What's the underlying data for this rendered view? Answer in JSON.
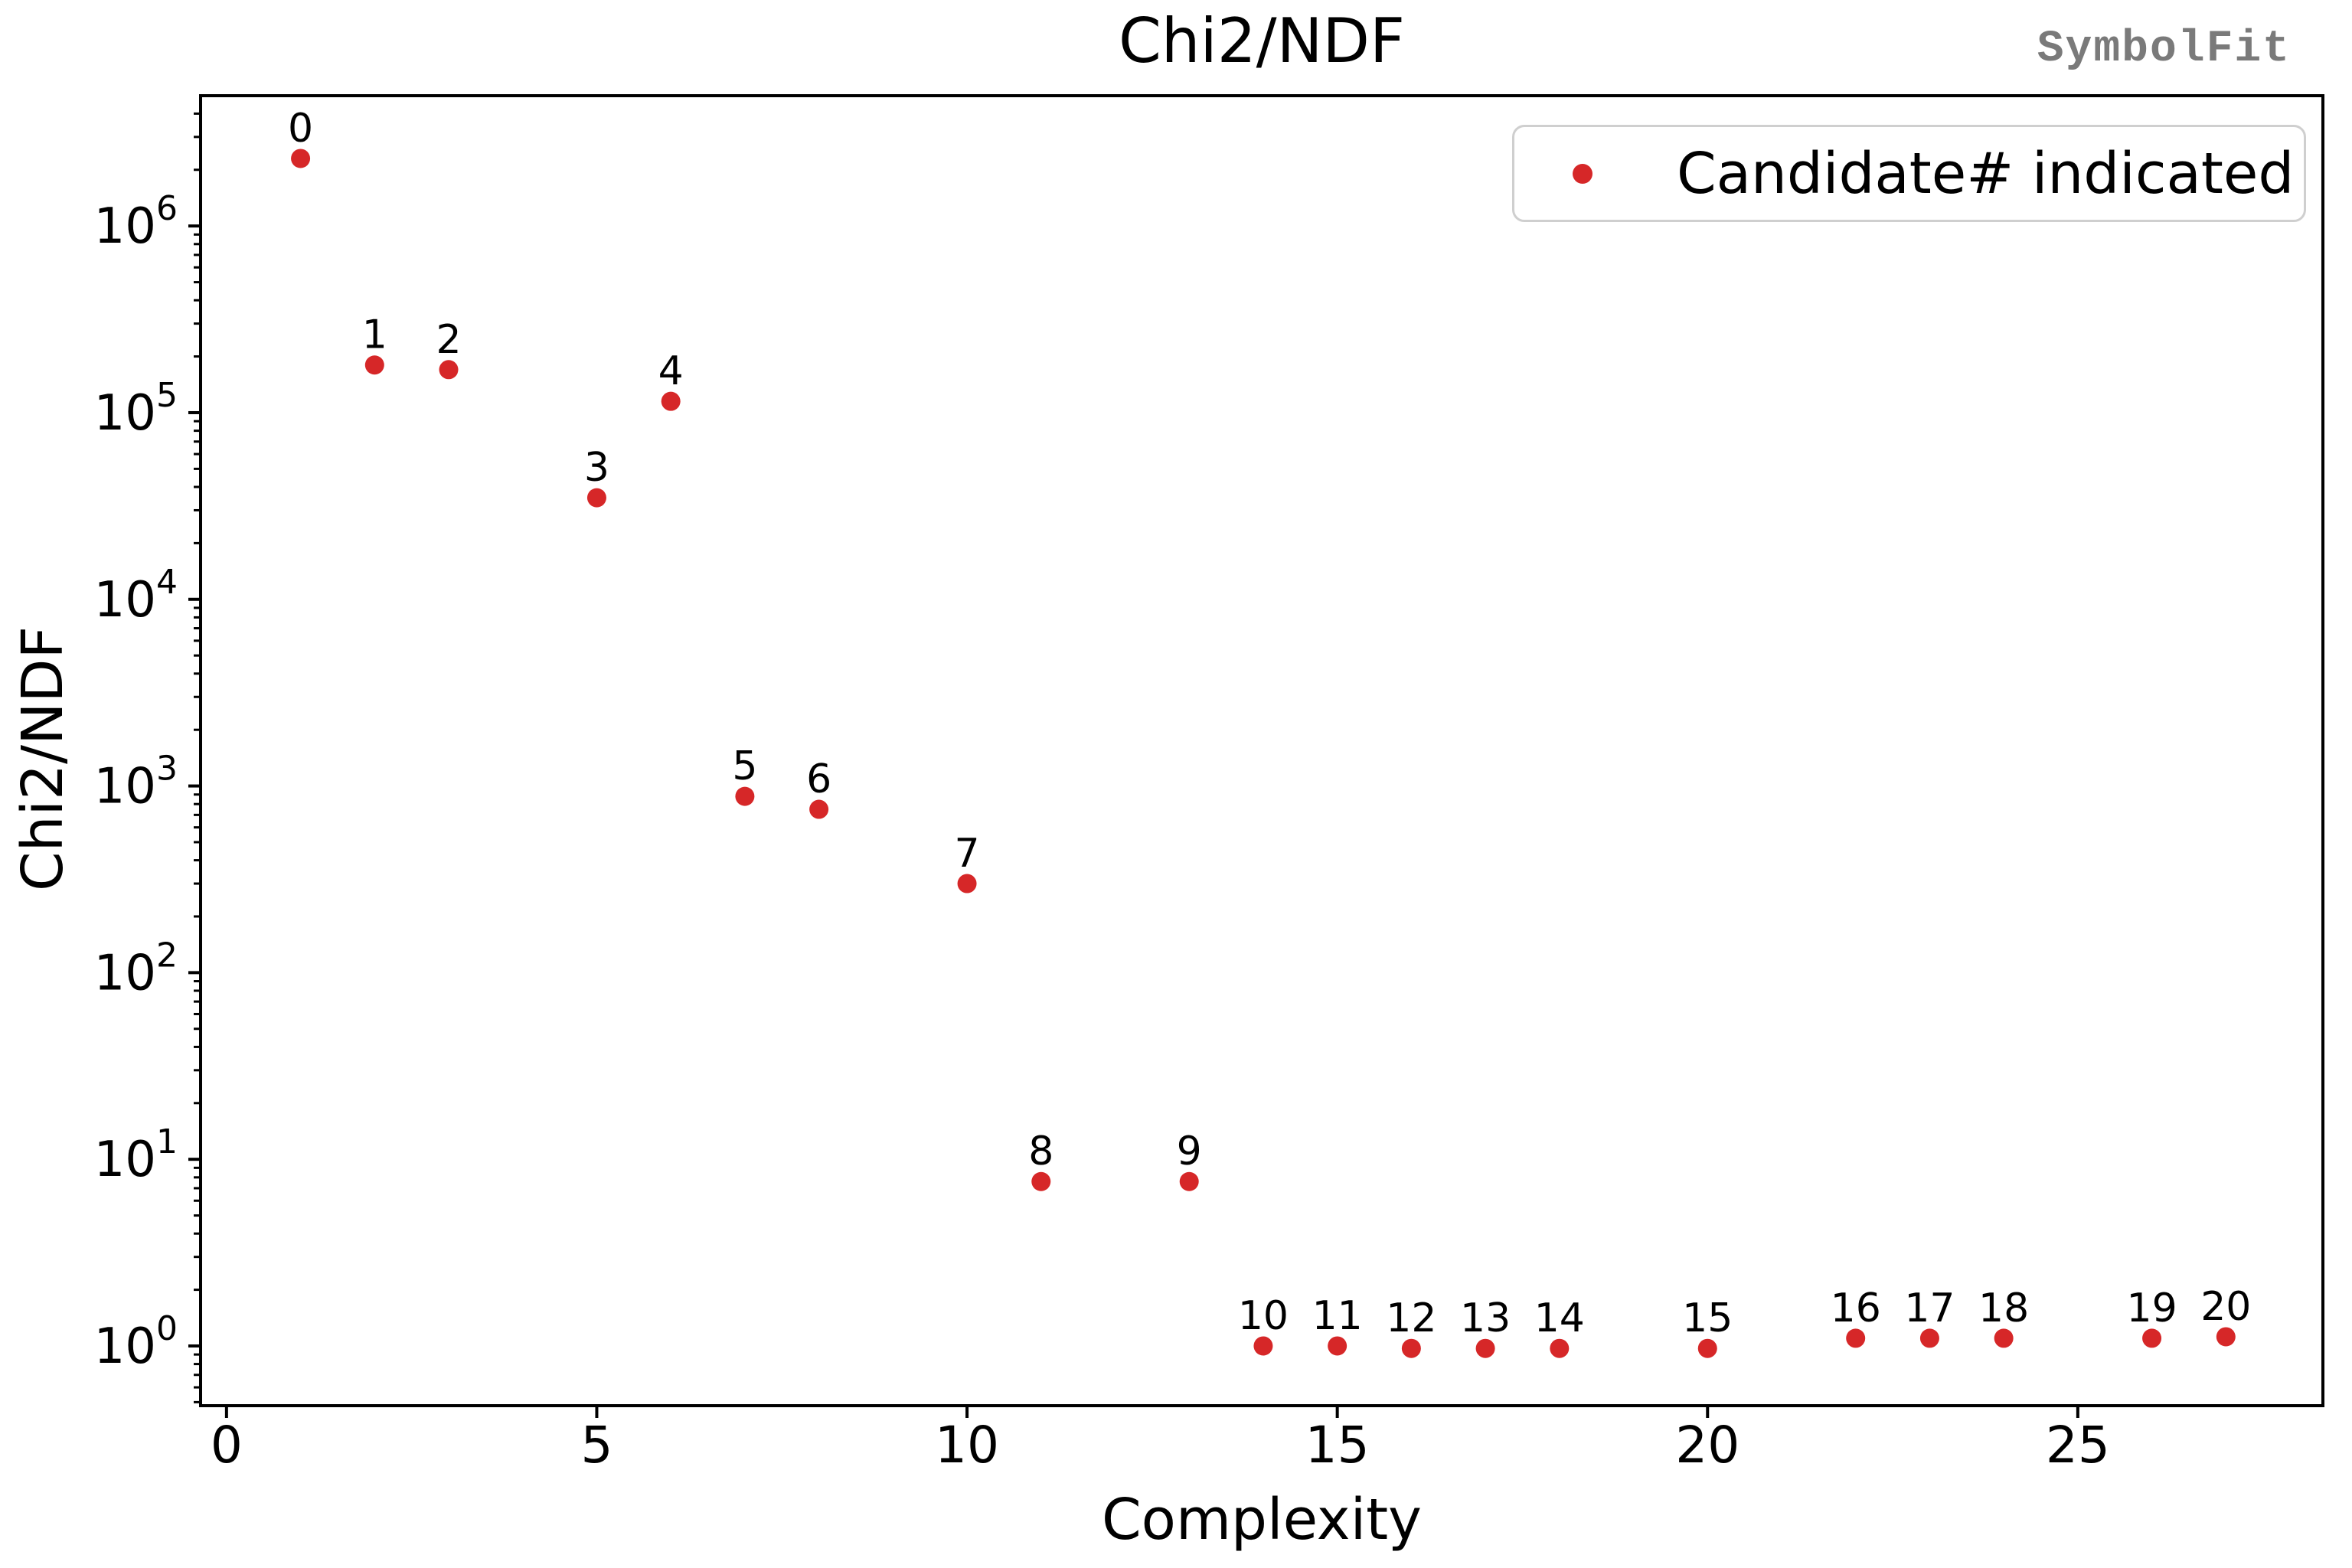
{
  "figure": {
    "title": "Chi2/NDF",
    "watermark": "SymbolFit",
    "background_color": "#ffffff",
    "text_color": "#000000"
  },
  "legend": {
    "label": "Candidate# indicated",
    "marker_color": "#d62728"
  },
  "axes": {
    "xlabel": "Complexity",
    "ylabel": "Chi2/NDF",
    "x_ticks": [
      0,
      5,
      10,
      15,
      20,
      25
    ],
    "y_tick_exponents": [
      0,
      1,
      2,
      3,
      4,
      5,
      6
    ],
    "xlim": [
      -0.35,
      28.31
    ],
    "ylog_lim": [
      -0.32,
      6.698
    ]
  },
  "chart_data": {
    "type": "scatter",
    "title": "Chi2/NDF",
    "xlabel": "Complexity",
    "ylabel": "Chi2/NDF",
    "xscale": "linear",
    "yscale": "log",
    "xlim": [
      -0.35,
      28.31
    ],
    "ylim_log10": [
      -0.32,
      6.698
    ],
    "grid": false,
    "legend_position": "upper right",
    "legend": [
      "Candidate# indicated"
    ],
    "marker": "circle",
    "marker_color": "#d62728",
    "annotation": "candidate number above each point",
    "points": [
      {
        "candidate": "0",
        "complexity": 1,
        "chi2_ndf": 2300000
      },
      {
        "candidate": "1",
        "complexity": 2,
        "chi2_ndf": 180000
      },
      {
        "candidate": "2",
        "complexity": 3,
        "chi2_ndf": 170000
      },
      {
        "candidate": "3",
        "complexity": 5,
        "chi2_ndf": 35000
      },
      {
        "candidate": "4",
        "complexity": 6,
        "chi2_ndf": 115000
      },
      {
        "candidate": "5",
        "complexity": 7,
        "chi2_ndf": 880
      },
      {
        "candidate": "6",
        "complexity": 8,
        "chi2_ndf": 750
      },
      {
        "candidate": "7",
        "complexity": 10,
        "chi2_ndf": 300
      },
      {
        "candidate": "8",
        "complexity": 11,
        "chi2_ndf": 7.6
      },
      {
        "candidate": "9",
        "complexity": 13,
        "chi2_ndf": 7.6
      },
      {
        "candidate": "10",
        "complexity": 14,
        "chi2_ndf": 1.0
      },
      {
        "candidate": "11",
        "complexity": 15,
        "chi2_ndf": 1.0
      },
      {
        "candidate": "12",
        "complexity": 16,
        "chi2_ndf": 0.97
      },
      {
        "candidate": "13",
        "complexity": 17,
        "chi2_ndf": 0.97
      },
      {
        "candidate": "14",
        "complexity": 18,
        "chi2_ndf": 0.97
      },
      {
        "candidate": "15",
        "complexity": 20,
        "chi2_ndf": 0.97
      },
      {
        "candidate": "16",
        "complexity": 22,
        "chi2_ndf": 1.1
      },
      {
        "candidate": "17",
        "complexity": 23,
        "chi2_ndf": 1.1
      },
      {
        "candidate": "18",
        "complexity": 24,
        "chi2_ndf": 1.1
      },
      {
        "candidate": "19",
        "complexity": 26,
        "chi2_ndf": 1.1
      },
      {
        "candidate": "20",
        "complexity": 27,
        "chi2_ndf": 1.12
      }
    ]
  }
}
